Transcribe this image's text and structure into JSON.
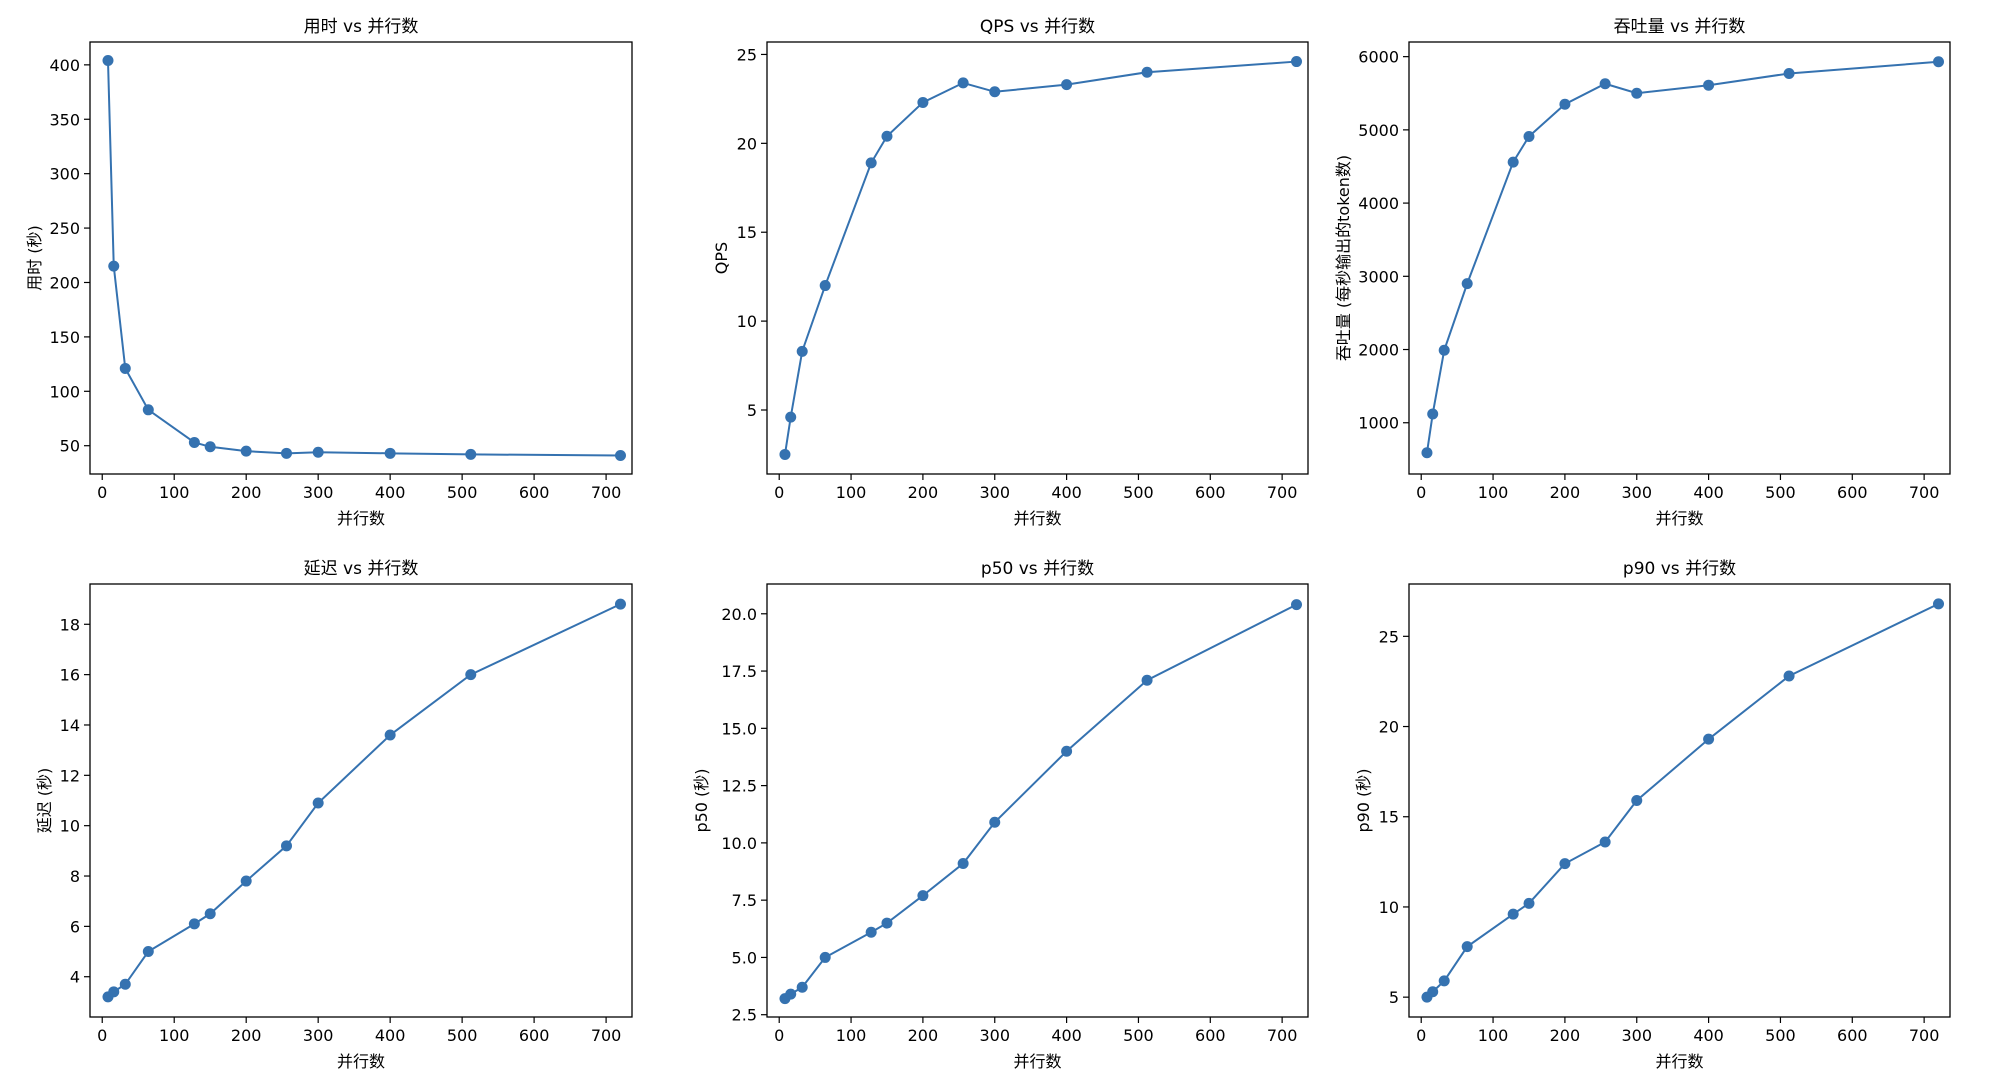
{
  "figure": {
    "background": "#ffffff",
    "line_color": "#3572b0"
  },
  "chart_data": [
    {
      "type": "line",
      "title": "用时 vs 并行数",
      "xlabel": "并行数",
      "ylabel": "用时 (秒)",
      "xlim": [
        -17,
        736
      ],
      "ylim": [
        24,
        421
      ],
      "xticks": [
        0,
        100,
        200,
        300,
        400,
        500,
        600,
        700
      ],
      "yticks": [
        50,
        100,
        150,
        200,
        250,
        300,
        350,
        400
      ],
      "x": [
        8,
        16,
        32,
        64,
        128,
        150,
        200,
        256,
        300,
        400,
        512,
        720
      ],
      "y": [
        404,
        215,
        121,
        83,
        53,
        49,
        45,
        43,
        44,
        43,
        42,
        41
      ],
      "marker": "circle",
      "grid": false
    },
    {
      "type": "line",
      "title": "QPS vs 并行数",
      "xlabel": "并行数",
      "ylabel": "QPS",
      "xlim": [
        -17,
        736
      ],
      "ylim": [
        1.4,
        25.7
      ],
      "xticks": [
        0,
        100,
        200,
        300,
        400,
        500,
        600,
        700
      ],
      "yticks": [
        5,
        10,
        15,
        20,
        25
      ],
      "x": [
        8,
        16,
        32,
        64,
        128,
        150,
        200,
        256,
        300,
        400,
        512,
        720
      ],
      "y": [
        2.5,
        4.6,
        8.3,
        12.0,
        18.9,
        20.4,
        22.3,
        23.4,
        22.9,
        23.3,
        24.0,
        24.6
      ],
      "marker": "circle",
      "grid": false
    },
    {
      "type": "line",
      "title": "吞吐量 vs 并行数",
      "xlabel": "并行数",
      "ylabel": "吞吐量 (每秒输出的token数)",
      "xlim": [
        -17,
        736
      ],
      "ylim": [
        300,
        6200
      ],
      "xticks": [
        0,
        100,
        200,
        300,
        400,
        500,
        600,
        700
      ],
      "yticks": [
        1000,
        2000,
        3000,
        4000,
        5000,
        6000
      ],
      "x": [
        8,
        16,
        32,
        64,
        128,
        150,
        200,
        256,
        300,
        400,
        512,
        720
      ],
      "y": [
        590,
        1120,
        1990,
        2900,
        4560,
        4910,
        5350,
        5630,
        5500,
        5610,
        5770,
        5930
      ],
      "marker": "circle",
      "grid": false
    },
    {
      "type": "line",
      "title": "延迟 vs 并行数",
      "xlabel": "并行数",
      "ylabel": "延迟 (秒)",
      "xlim": [
        -17,
        736
      ],
      "ylim": [
        2.4,
        19.6
      ],
      "xticks": [
        0,
        100,
        200,
        300,
        400,
        500,
        600,
        700
      ],
      "yticks": [
        4,
        6,
        8,
        10,
        12,
        14,
        16,
        18
      ],
      "x": [
        8,
        16,
        32,
        64,
        128,
        150,
        200,
        256,
        300,
        400,
        512,
        720
      ],
      "y": [
        3.2,
        3.4,
        3.7,
        5.0,
        6.1,
        6.5,
        7.8,
        9.2,
        10.9,
        13.6,
        16.0,
        18.8
      ],
      "marker": "circle",
      "grid": false
    },
    {
      "type": "line",
      "title": "p50 vs 并行数",
      "xlabel": "并行数",
      "ylabel": "p50 (秒)",
      "xlim": [
        -17,
        736
      ],
      "ylim": [
        2.4,
        21.3
      ],
      "xticks": [
        0,
        100,
        200,
        300,
        400,
        500,
        600,
        700
      ],
      "yticks": [
        2.5,
        5.0,
        7.5,
        10.0,
        12.5,
        15.0,
        17.5,
        20.0
      ],
      "yticks_labels": [
        "2.5",
        "5.0",
        "7.5",
        "10.0",
        "12.5",
        "15.0",
        "17.5",
        "20.0"
      ],
      "x": [
        8,
        16,
        32,
        64,
        128,
        150,
        200,
        256,
        300,
        400,
        512,
        720
      ],
      "y": [
        3.2,
        3.4,
        3.7,
        5.0,
        6.1,
        6.5,
        7.7,
        9.1,
        10.9,
        14.0,
        17.1,
        20.4
      ],
      "marker": "circle",
      "grid": false
    },
    {
      "type": "line",
      "title": "p90 vs 并行数",
      "xlabel": "并行数",
      "ylabel": "p90 (秒)",
      "xlim": [
        -17,
        736
      ],
      "ylim": [
        3.9,
        27.9
      ],
      "xticks": [
        0,
        100,
        200,
        300,
        400,
        500,
        600,
        700
      ],
      "yticks": [
        5,
        10,
        15,
        20,
        25
      ],
      "x": [
        8,
        16,
        32,
        64,
        128,
        150,
        200,
        256,
        300,
        400,
        512,
        720
      ],
      "y": [
        5.0,
        5.3,
        5.9,
        7.8,
        9.6,
        10.2,
        12.4,
        13.6,
        15.9,
        19.3,
        22.8,
        26.8
      ],
      "marker": "circle",
      "grid": false
    }
  ]
}
